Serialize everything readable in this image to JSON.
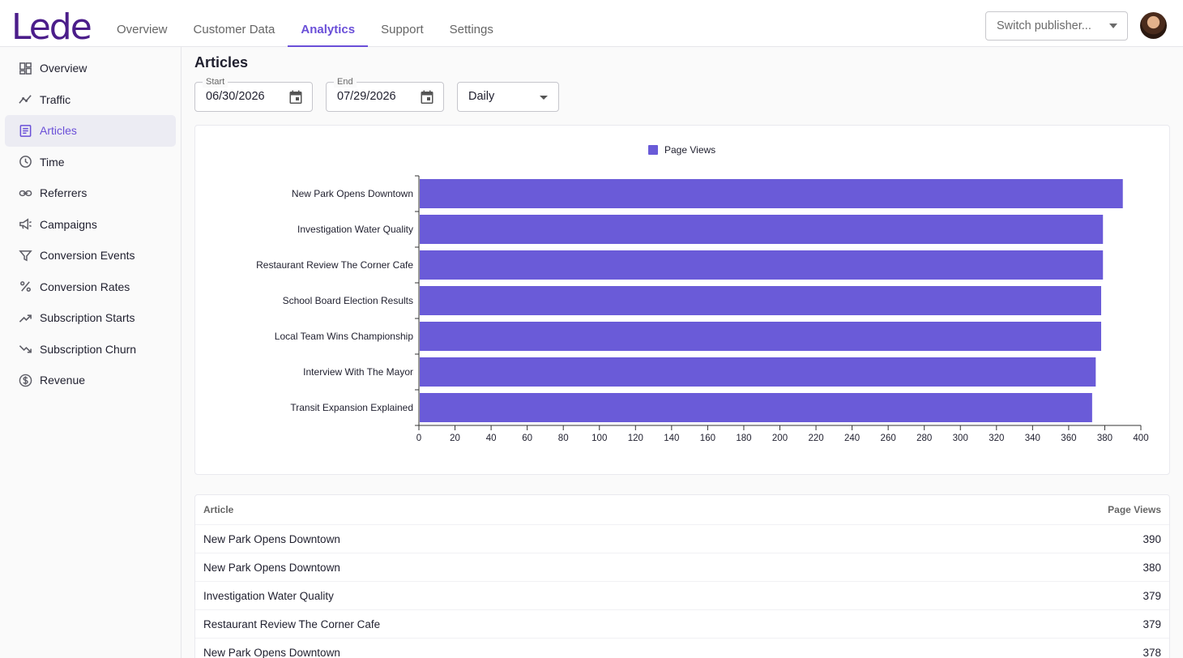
{
  "app": {
    "logo": "Lede"
  },
  "topnav": [
    {
      "label": "Overview",
      "active": false
    },
    {
      "label": "Customer Data",
      "active": false
    },
    {
      "label": "Analytics",
      "active": true
    },
    {
      "label": "Support",
      "active": false
    },
    {
      "label": "Settings",
      "active": false
    }
  ],
  "publisher": {
    "placeholder": "Switch publisher..."
  },
  "sidebar": {
    "items": [
      {
        "label": "Overview",
        "icon": "dashboard-icon"
      },
      {
        "label": "Traffic",
        "icon": "trend-icon"
      },
      {
        "label": "Articles",
        "icon": "article-icon",
        "active": true
      },
      {
        "label": "Time",
        "icon": "clock-icon"
      },
      {
        "label": "Referrers",
        "icon": "link-icon"
      },
      {
        "label": "Campaigns",
        "icon": "megaphone-icon"
      },
      {
        "label": "Conversion Events",
        "icon": "filter-icon"
      },
      {
        "label": "Conversion Rates",
        "icon": "percent-icon"
      },
      {
        "label": "Subscription Starts",
        "icon": "trending-up-icon"
      },
      {
        "label": "Subscription Churn",
        "icon": "trending-down-icon"
      },
      {
        "label": "Revenue",
        "icon": "dollar-icon"
      }
    ]
  },
  "page": {
    "title": "Articles"
  },
  "filters": {
    "start_label": "Start",
    "start_value": "06/30/2026",
    "end_label": "End",
    "end_value": "07/29/2026",
    "interval_value": "Daily"
  },
  "chart_data": {
    "type": "bar",
    "orientation": "horizontal",
    "categories": [
      "New Park Opens Downtown",
      "Investigation Water Quality",
      "Restaurant Review The Corner Cafe",
      "School Board Election Results",
      "Local Team Wins Championship",
      "Interview With The Mayor",
      "Transit Expansion Explained"
    ],
    "series": [
      {
        "name": "Page Views",
        "color": "#6a5bd8",
        "values": [
          390,
          379,
          379,
          378,
          378,
          375,
          373
        ]
      }
    ],
    "xlim": [
      0,
      400
    ],
    "xticks": [
      0,
      20,
      40,
      60,
      80,
      100,
      120,
      140,
      160,
      180,
      200,
      220,
      240,
      260,
      280,
      300,
      320,
      340,
      360,
      380,
      400
    ],
    "legend": "top-center",
    "grid": false,
    "title": "",
    "xlabel": "",
    "ylabel": ""
  },
  "table": {
    "col_article": "Article",
    "col_views": "Page Views",
    "rows": [
      {
        "article": "New Park Opens Downtown",
        "views": "390"
      },
      {
        "article": "New Park Opens Downtown",
        "views": "380"
      },
      {
        "article": "Investigation Water Quality",
        "views": "379"
      },
      {
        "article": "Restaurant Review The Corner Cafe",
        "views": "379"
      },
      {
        "article": "New Park Opens Downtown",
        "views": "378"
      }
    ]
  }
}
